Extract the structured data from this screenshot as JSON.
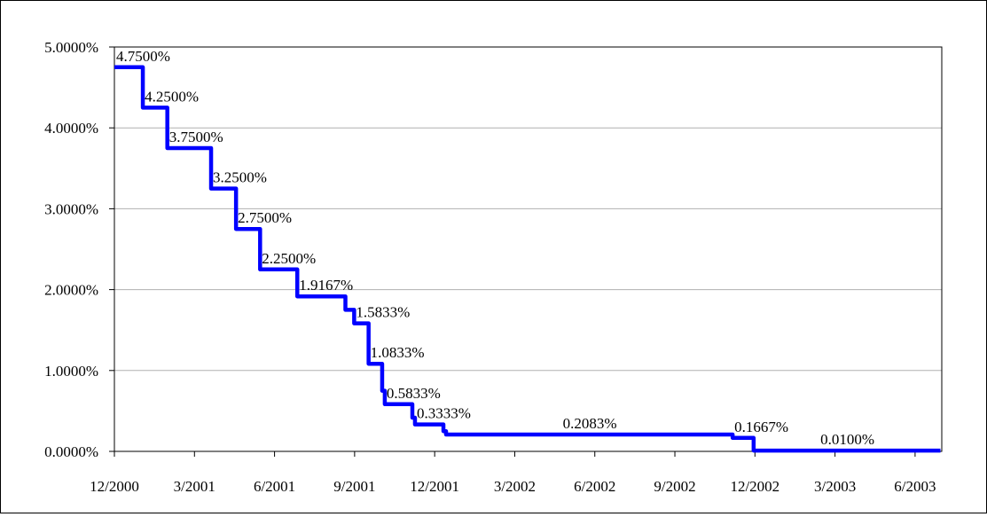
{
  "chart_data": {
    "type": "line",
    "step": true,
    "title": "",
    "xlabel": "",
    "ylabel": "",
    "ylim": [
      0,
      0.05
    ],
    "xlim": [
      "2000-12",
      "2003-07"
    ],
    "y_ticks": [
      "0.0000%",
      "1.0000%",
      "2.0000%",
      "3.0000%",
      "4.0000%",
      "5.0000%"
    ],
    "x_ticks": [
      "12/2000",
      "3/2001",
      "6/2001",
      "9/2001",
      "12/2001",
      "3/2002",
      "6/2002",
      "9/2002",
      "12/2002",
      "3/2003",
      "6/2003"
    ],
    "grid": true,
    "legend": "none",
    "line_color": "#0000FF",
    "series": [
      {
        "x": [
          "2000-12-01",
          "2001-01-03",
          "2001-01-31",
          "2001-03-20",
          "2001-04-18",
          "2001-05-15",
          "2001-06-27",
          "2001-08-21",
          "2001-08-31",
          "2001-09-17",
          "2001-10-02",
          "2001-10-05",
          "2001-11-06",
          "2001-11-09",
          "2001-12-11",
          "2001-12-14",
          "2002-11-06",
          "2002-11-30",
          "2003-06-30"
        ],
        "y": [
          0.0475,
          0.0425,
          0.0375,
          0.0325,
          0.0275,
          0.0225,
          0.019167,
          0.0175,
          0.015833,
          0.010833,
          0.0075,
          0.005833,
          0.004167,
          0.003333,
          0.0025,
          0.002083,
          0.001667,
          0.0001,
          0.0001
        ]
      }
    ],
    "data_labels": [
      "4.7500%",
      "4.2500%",
      "3.7500%",
      "3.2500%",
      "2.7500%",
      "2.2500%",
      "1.9167%",
      "1.5833%",
      "1.0833%",
      "0.5833%",
      "0.3333%",
      "0.2083%",
      "0.1667%",
      "0.0100%"
    ]
  }
}
